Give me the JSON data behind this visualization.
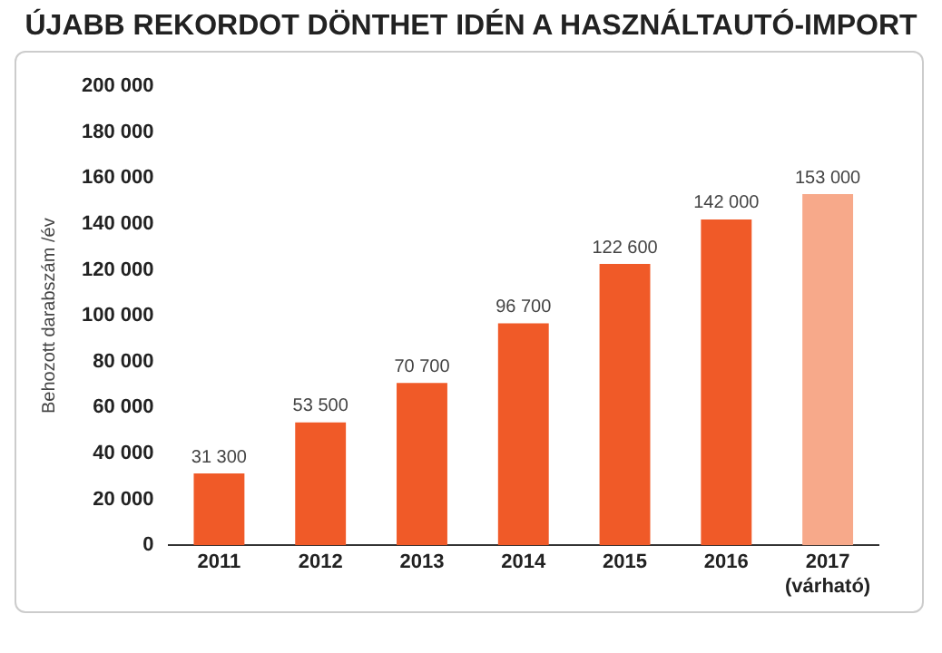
{
  "chart_data": {
    "type": "bar",
    "title": "ÚJABB REKORDOT DÖNTHET IDÉN A HASZNÁLTAUTÓ-IMPORT",
    "ylabel": "Behozott darabszám /év",
    "categories": [
      "2011",
      "2012",
      "2013",
      "2014",
      "2015",
      "2016",
      "2017 (várható)"
    ],
    "values": [
      31300,
      53500,
      70700,
      96700,
      122600,
      142000,
      153000
    ],
    "colors": [
      "#f05a28",
      "#f05a28",
      "#f05a28",
      "#f05a28",
      "#f05a28",
      "#f05a28",
      "#f7a98a"
    ],
    "value_labels": [
      "31 300",
      "53 500",
      "70 700",
      "96 700",
      "122 600",
      "142 000",
      "153 000"
    ],
    "ylim": [
      0,
      200000
    ],
    "yticks": [
      {
        "value": 0,
        "label": "0"
      },
      {
        "value": 20000,
        "label": "20 000"
      },
      {
        "value": 40000,
        "label": "40 000"
      },
      {
        "value": 60000,
        "label": "60 000"
      },
      {
        "value": 80000,
        "label": "80 000"
      },
      {
        "value": 100000,
        "label": "100 000"
      },
      {
        "value": 120000,
        "label": "120 000"
      },
      {
        "value": 140000,
        "label": "140 000"
      },
      {
        "value": 160000,
        "label": "160 000"
      },
      {
        "value": 180000,
        "label": "180 000"
      },
      {
        "value": 200000,
        "label": "200 000"
      }
    ],
    "grid": false,
    "legend": false
  }
}
